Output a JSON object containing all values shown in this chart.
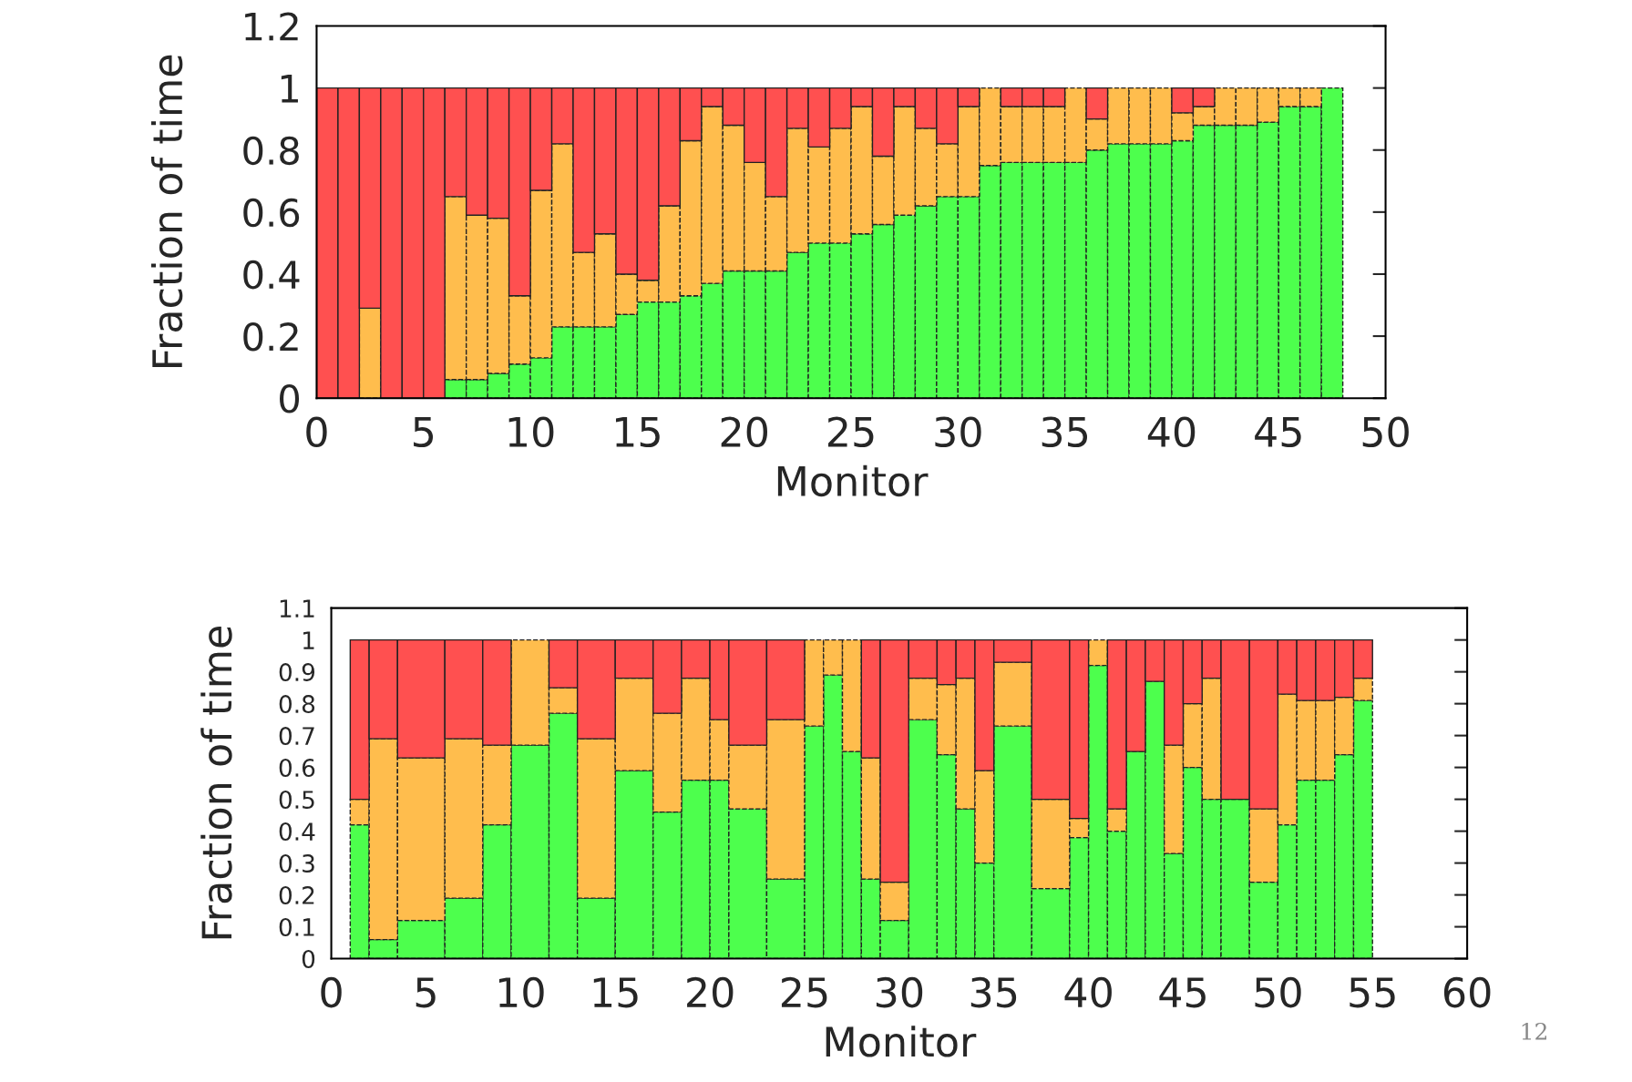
{
  "chart_data": [
    {
      "type": "bar",
      "stacked": true,
      "xlabel": "Monitor",
      "ylabel": "Fraction of time",
      "x": [
        0.5,
        1.5,
        2.5,
        3.5,
        4.5,
        5.5,
        6.5,
        7.5,
        8.5,
        9.5,
        10.5,
        11.5,
        12.5,
        13.5,
        14.5,
        15.5,
        16.5,
        17.5,
        18.5,
        19.5,
        20.5,
        21.5,
        22.5,
        23.5,
        24.5,
        25.5,
        26.5,
        27.5,
        28.5,
        29.5,
        30.5,
        31.5,
        32.5,
        33.5,
        34.5,
        35.5,
        36.5,
        37.5,
        38.5,
        39.5,
        40.5,
        41.5,
        42.5,
        43.5,
        44.5,
        45.5,
        46.5,
        47.5
      ],
      "series": [
        {
          "color": "#4dff4d",
          "line_style": "dashed",
          "values": [
            0,
            0,
            0,
            0,
            0,
            0,
            0.06,
            0.06,
            0.08,
            0.11,
            0.13,
            0.23,
            0.23,
            0.23,
            0.27,
            0.31,
            0.31,
            0.33,
            0.37,
            0.41,
            0.41,
            0.41,
            0.47,
            0.5,
            0.5,
            0.53,
            0.56,
            0.59,
            0.62,
            0.65,
            0.65,
            0.75,
            0.76,
            0.76,
            0.76,
            0.76,
            0.8,
            0.82,
            0.82,
            0.82,
            0.83,
            0.88,
            0.88,
            0.88,
            0.89,
            0.94,
            0.94,
            1
          ]
        },
        {
          "color": "#ffbd4d",
          "line_style": "dashed",
          "values": [
            0,
            0,
            0.29,
            0,
            0,
            0,
            0.59,
            0.53,
            0.5,
            0.22,
            0.54,
            0.59,
            0.24,
            0.3,
            0.13,
            0.07,
            0.31,
            0.5,
            0.57,
            0.47,
            0.35,
            0.24,
            0.4,
            0.31,
            0.37,
            0.41,
            0.22,
            0.35,
            0.25,
            0.17,
            0.29,
            0.25,
            0.18,
            0.18,
            0.18,
            0.24,
            0.1,
            0.18,
            0.18,
            0.18,
            0.09,
            0.06,
            0.12,
            0.12,
            0.11,
            0.06,
            0.06,
            0
          ]
        },
        {
          "color": "#ff5050",
          "line_style": "solid",
          "values": [
            1,
            1,
            0.71,
            1,
            1,
            1,
            0.35,
            0.41,
            0.42,
            0.67,
            0.33,
            0.18,
            0.53,
            0.47,
            0.6,
            0.62,
            0.38,
            0.17,
            0.06,
            0.12,
            0.24,
            0.35,
            0.13,
            0.19,
            0.13,
            0.06,
            0.22,
            0.06,
            0.13,
            0.18,
            0.06,
            0,
            0.06,
            0.06,
            0.06,
            0,
            0.1,
            0,
            0,
            0,
            0.08,
            0.06,
            0,
            0,
            0,
            0,
            0,
            0
          ]
        }
      ],
      "xlim": [
        0,
        50
      ],
      "xticks": [
        0,
        5,
        10,
        15,
        20,
        25,
        30,
        35,
        40,
        45,
        50
      ],
      "ylim": [
        0,
        1.2
      ],
      "yticks": [
        0,
        0.2,
        0.4,
        0.6,
        0.8,
        1,
        1.2
      ]
    },
    {
      "type": "bar",
      "stacked": true,
      "xlabel": "Monitor",
      "ylabel": "Fraction of time",
      "x": [
        1.5,
        2.75,
        4.75,
        7,
        8.75,
        10.5,
        12.25,
        14,
        16,
        17.75,
        19.25,
        20.5,
        22,
        24,
        25.5,
        26.5,
        27.5,
        28.5,
        29.75,
        31.25,
        32.5,
        33.5,
        34.5,
        36,
        38,
        39.5,
        40.5,
        41.5,
        42.5,
        43.5,
        44.5,
        45.5,
        46.5,
        47.75,
        49.25,
        50.5,
        51.5,
        52.5,
        53.5,
        54.5
      ],
      "series": [
        {
          "color": "#4dff4d",
          "line_style": "dashed",
          "values": [
            0.42,
            0.06,
            0.12,
            0.19,
            0.42,
            0.67,
            0.77,
            0.19,
            0.59,
            0.46,
            0.56,
            0.56,
            0.47,
            0.25,
            0.73,
            0.89,
            0.65,
            0.25,
            0.12,
            0.75,
            0.64,
            0.47,
            0.3,
            0.73,
            0.22,
            0.38,
            0.92,
            0.4,
            0.65,
            0.87,
            0.33,
            0.6,
            0.5,
            0.5,
            0.24,
            0.42,
            0.56,
            0.56,
            0.64,
            0.81
          ]
        },
        {
          "color": "#ffbd4d",
          "line_style": "dashed",
          "values": [
            0.08,
            0.63,
            0.51,
            0.5,
            0.25,
            0.33,
            0.08,
            0.5,
            0.29,
            0.31,
            0.32,
            0.19,
            0.2,
            0.5,
            0.27,
            0.11,
            0.35,
            0.38,
            0.12,
            0.13,
            0.22,
            0.41,
            0.29,
            0.2,
            0.28,
            0.06,
            0.08,
            0.07,
            0,
            0,
            0.34,
            0.2,
            0.38,
            0,
            0.23,
            0.41,
            0.25,
            0.25,
            0.18,
            0.07
          ]
        },
        {
          "color": "#ff5050",
          "line_style": "solid",
          "values": [
            0.5,
            0.31,
            0.37,
            0.31,
            0.33,
            0,
            0.15,
            0.31,
            0.12,
            0.23,
            0.12,
            0.25,
            0.33,
            0.25,
            0,
            0,
            0,
            0.37,
            0.76,
            0.12,
            0.14,
            0.12,
            0.41,
            0.07,
            0.5,
            0.56,
            0,
            0.53,
            0.35,
            0.13,
            0.33,
            0.2,
            0.12,
            0.5,
            0.53,
            0.17,
            0.19,
            0.19,
            0.18,
            0.12
          ]
        }
      ],
      "xlim": [
        0,
        60
      ],
      "xticks": [
        0,
        5,
        10,
        15,
        20,
        25,
        30,
        35,
        40,
        45,
        50,
        55,
        60
      ],
      "ylim": [
        0,
        1.1
      ],
      "yticks": [
        0,
        0.1,
        0.2,
        0.3,
        0.4,
        0.5,
        0.6,
        0.7,
        0.8,
        0.9,
        1,
        1.1
      ],
      "annotations": [
        "12"
      ]
    }
  ]
}
